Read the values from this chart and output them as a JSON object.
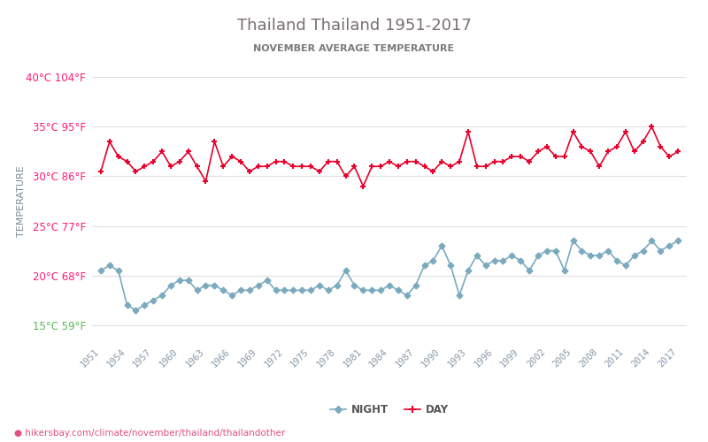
{
  "title": "Thailand Thailand 1951-2017",
  "subtitle": "NOVEMBER AVERAGE TEMPERATURE",
  "ylabel": "TEMPERATURE",
  "footer": "hikersbay.com/climate/november/thailand/thailandother",
  "years": [
    1951,
    1952,
    1953,
    1954,
    1955,
    1956,
    1957,
    1958,
    1959,
    1960,
    1961,
    1962,
    1963,
    1964,
    1965,
    1966,
    1967,
    1968,
    1969,
    1970,
    1971,
    1972,
    1973,
    1974,
    1975,
    1976,
    1977,
    1978,
    1979,
    1980,
    1981,
    1982,
    1983,
    1984,
    1985,
    1986,
    1987,
    1988,
    1989,
    1990,
    1991,
    1992,
    1993,
    1994,
    1995,
    1996,
    1997,
    1998,
    1999,
    2000,
    2001,
    2002,
    2003,
    2004,
    2005,
    2006,
    2007,
    2008,
    2009,
    2010,
    2011,
    2012,
    2013,
    2014,
    2015,
    2016,
    2017
  ],
  "day_temps": [
    30.5,
    33.5,
    32.0,
    31.5,
    30.5,
    31.0,
    31.5,
    32.5,
    31.0,
    31.5,
    32.5,
    31.0,
    29.5,
    33.5,
    31.0,
    32.0,
    31.5,
    30.5,
    31.0,
    31.0,
    31.5,
    31.5,
    31.0,
    31.0,
    31.0,
    30.5,
    31.5,
    31.5,
    30.0,
    31.0,
    29.0,
    31.0,
    31.0,
    31.5,
    31.0,
    31.5,
    31.5,
    31.0,
    30.5,
    31.5,
    31.0,
    31.5,
    34.5,
    31.0,
    31.0,
    31.5,
    31.5,
    32.0,
    32.0,
    31.5,
    32.5,
    33.0,
    32.0,
    32.0,
    34.5,
    33.0,
    32.5,
    31.0,
    32.5,
    33.0,
    34.5,
    32.5,
    33.5,
    35.0,
    33.0,
    32.0,
    32.5
  ],
  "night_temps": [
    20.5,
    21.0,
    20.5,
    17.0,
    16.5,
    17.0,
    17.5,
    18.0,
    19.0,
    19.5,
    19.5,
    18.5,
    19.0,
    19.0,
    18.5,
    18.0,
    18.5,
    18.5,
    19.0,
    19.5,
    18.5,
    18.5,
    18.5,
    18.5,
    18.5,
    19.0,
    18.5,
    19.0,
    20.5,
    19.0,
    18.5,
    18.5,
    18.5,
    19.0,
    18.5,
    18.0,
    19.0,
    21.0,
    21.5,
    23.0,
    21.0,
    18.0,
    20.5,
    22.0,
    21.0,
    21.5,
    21.5,
    22.0,
    21.5,
    20.5,
    22.0,
    22.5,
    22.5,
    20.5,
    23.5,
    22.5,
    22.0,
    22.0,
    22.5,
    21.5,
    21.0,
    22.0,
    22.5,
    23.5,
    22.5,
    23.0,
    23.5
  ],
  "day_color": "#e8002a",
  "night_color": "#7baabe",
  "grid_color": "#e0e0e0",
  "title_color": "#7a6e6e",
  "subtitle_color": "#7a7a7a",
  "ylabel_color": "#7a8a9a",
  "ylim": [
    13,
    42
  ],
  "xlim": [
    1950,
    2018
  ],
  "xtick_years": [
    1951,
    1954,
    1957,
    1960,
    1963,
    1966,
    1969,
    1972,
    1975,
    1978,
    1981,
    1984,
    1987,
    1990,
    1993,
    1996,
    1999,
    2002,
    2005,
    2008,
    2011,
    2014,
    2017
  ],
  "ytick_vals": [
    40,
    35,
    30,
    25,
    20,
    15
  ],
  "ytick_label_map": {
    "40": "40°C 104°F",
    "35": "35°C 95°F",
    "30": "30°C 86°F",
    "25": "25°C 77°F",
    "20": "20°C 68°F",
    "15": "15°C 59°F"
  },
  "ytick_color_map": {
    "40": "#ff1a75",
    "35": "#ff1a75",
    "30": "#ff1a75",
    "25": "#ff1a75",
    "20": "#ff1a75",
    "15": "#55bb55"
  },
  "footer_color": "#e05080",
  "background_color": "#ffffff"
}
